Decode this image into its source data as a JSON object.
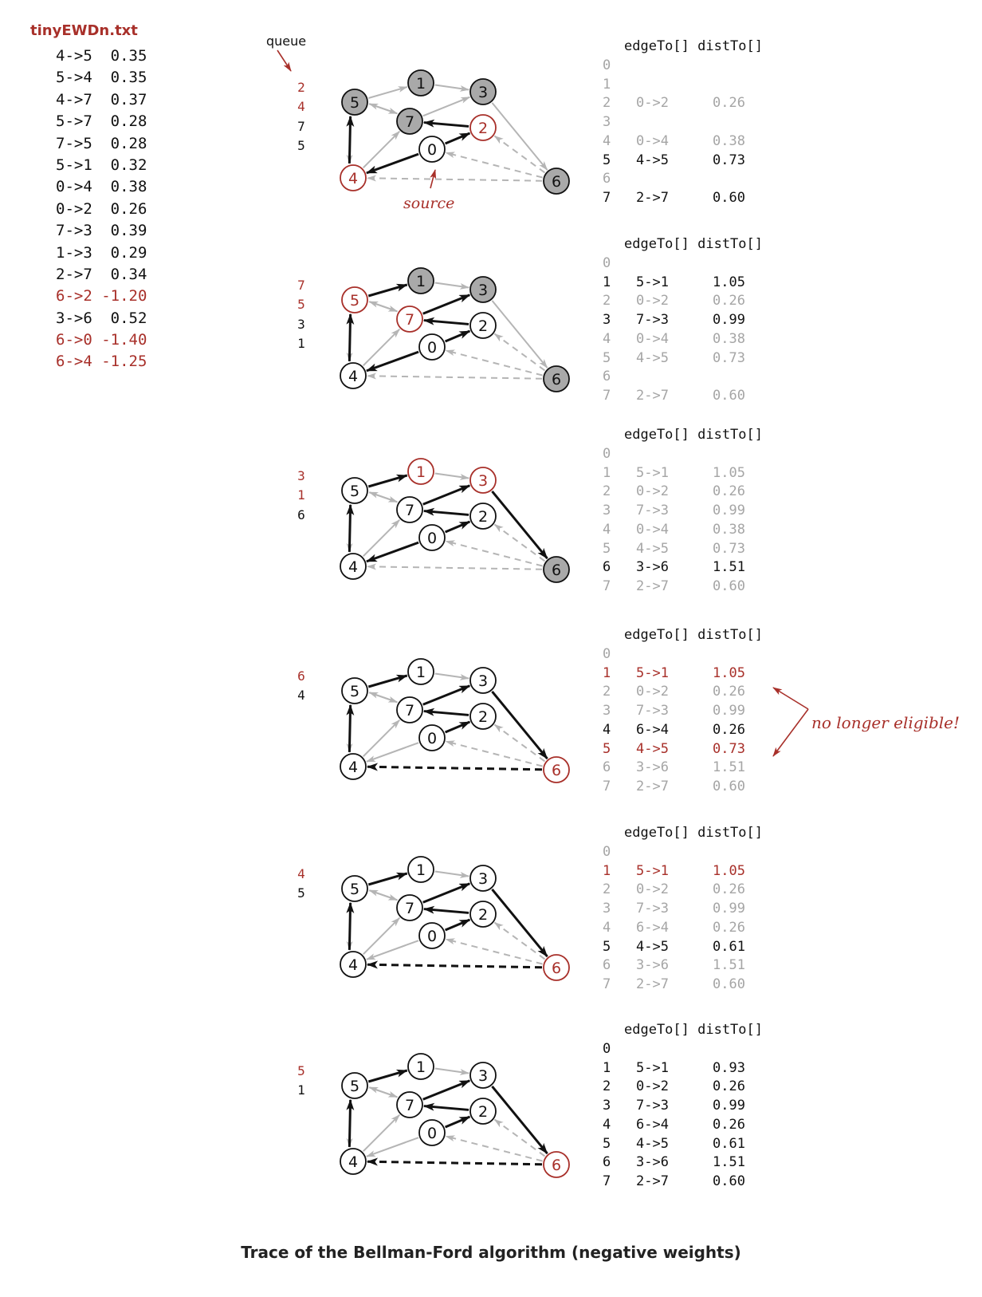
{
  "file_title": "tinyEWDn.txt",
  "edge_list": [
    {
      "text": "4->5  0.35",
      "highlight": false
    },
    {
      "text": "5->4  0.35",
      "highlight": false
    },
    {
      "text": "4->7  0.37",
      "highlight": false
    },
    {
      "text": "5->7  0.28",
      "highlight": false
    },
    {
      "text": "7->5  0.28",
      "highlight": false
    },
    {
      "text": "5->1  0.32",
      "highlight": false
    },
    {
      "text": "0->4  0.38",
      "highlight": false
    },
    {
      "text": "0->2  0.26",
      "highlight": false
    },
    {
      "text": "7->3  0.39",
      "highlight": false
    },
    {
      "text": "1->3  0.29",
      "highlight": false
    },
    {
      "text": "2->7  0.34",
      "highlight": false
    },
    {
      "text": "6->2 -1.20",
      "highlight": true
    },
    {
      "text": "3->6  0.52",
      "highlight": false
    },
    {
      "text": "6->0 -1.40",
      "highlight": true
    },
    {
      "text": "6->4 -1.25",
      "highlight": true
    }
  ],
  "labels": {
    "queue": "queue",
    "source": "source",
    "table_header": "edgeTo[] distTo[]",
    "note": "no longer eligible!",
    "caption": "Trace of the Bellman-Ford algorithm (negative weights)"
  },
  "colors": {
    "red": "#a8302a",
    "gray": "#b5b5b5",
    "black": "#111111",
    "fill_gray": "#a9a9a9"
  },
  "steps": [
    {
      "queue": [
        {
          "v": "2",
          "red": true
        },
        {
          "v": "4",
          "red": true
        },
        {
          "v": "7",
          "red": false
        },
        {
          "v": "5",
          "red": false
        }
      ],
      "vertices": {
        "0": "white",
        "1": "gray",
        "2": "red",
        "3": "gray",
        "4": "red",
        "5": "gray",
        "6": "gray",
        "7": "gray"
      },
      "black_edges": [
        "0->4",
        "0->2",
        "4->5",
        "2->7"
      ],
      "dashed_black": [],
      "table": [
        {
          "v": "0",
          "edge": "",
          "dist": "",
          "style": "gray"
        },
        {
          "v": "1",
          "edge": "",
          "dist": "",
          "style": "gray"
        },
        {
          "v": "2",
          "edge": "0->2",
          "dist": "0.26",
          "style": "gray"
        },
        {
          "v": "3",
          "edge": "",
          "dist": "",
          "style": "gray"
        },
        {
          "v": "4",
          "edge": "0->4",
          "dist": "0.38",
          "style": "gray"
        },
        {
          "v": "5",
          "edge": "4->5",
          "dist": "0.73",
          "style": "black"
        },
        {
          "v": "6",
          "edge": "",
          "dist": "",
          "style": "gray"
        },
        {
          "v": "7",
          "edge": "2->7",
          "dist": "0.60",
          "style": "black"
        }
      ]
    },
    {
      "queue": [
        {
          "v": "7",
          "red": true
        },
        {
          "v": "5",
          "red": true
        },
        {
          "v": "3",
          "red": false
        },
        {
          "v": "1",
          "red": false
        }
      ],
      "vertices": {
        "0": "white",
        "1": "gray",
        "2": "white",
        "3": "gray",
        "4": "white",
        "5": "red",
        "6": "gray",
        "7": "red"
      },
      "black_edges": [
        "0->4",
        "0->2",
        "4->5",
        "2->7",
        "5->1",
        "7->3"
      ],
      "dashed_black": [],
      "table": [
        {
          "v": "0",
          "edge": "",
          "dist": "",
          "style": "gray"
        },
        {
          "v": "1",
          "edge": "5->1",
          "dist": "1.05",
          "style": "black"
        },
        {
          "v": "2",
          "edge": "0->2",
          "dist": "0.26",
          "style": "gray"
        },
        {
          "v": "3",
          "edge": "7->3",
          "dist": "0.99",
          "style": "black"
        },
        {
          "v": "4",
          "edge": "0->4",
          "dist": "0.38",
          "style": "gray"
        },
        {
          "v": "5",
          "edge": "4->5",
          "dist": "0.73",
          "style": "gray"
        },
        {
          "v": "6",
          "edge": "",
          "dist": "",
          "style": "gray"
        },
        {
          "v": "7",
          "edge": "2->7",
          "dist": "0.60",
          "style": "gray"
        }
      ]
    },
    {
      "queue": [
        {
          "v": "3",
          "red": true
        },
        {
          "v": "1",
          "red": true
        },
        {
          "v": "6",
          "red": false
        }
      ],
      "vertices": {
        "0": "white",
        "1": "red",
        "2": "white",
        "3": "red",
        "4": "white",
        "5": "white",
        "6": "gray",
        "7": "white"
      },
      "black_edges": [
        "0->4",
        "0->2",
        "4->5",
        "2->7",
        "5->1",
        "7->3",
        "3->6"
      ],
      "dashed_black": [],
      "table": [
        {
          "v": "0",
          "edge": "",
          "dist": "",
          "style": "gray"
        },
        {
          "v": "1",
          "edge": "5->1",
          "dist": "1.05",
          "style": "gray"
        },
        {
          "v": "2",
          "edge": "0->2",
          "dist": "0.26",
          "style": "gray"
        },
        {
          "v": "3",
          "edge": "7->3",
          "dist": "0.99",
          "style": "gray"
        },
        {
          "v": "4",
          "edge": "0->4",
          "dist": "0.38",
          "style": "gray"
        },
        {
          "v": "5",
          "edge": "4->5",
          "dist": "0.73",
          "style": "gray"
        },
        {
          "v": "6",
          "edge": "3->6",
          "dist": "1.51",
          "style": "black"
        },
        {
          "v": "7",
          "edge": "2->7",
          "dist": "0.60",
          "style": "gray"
        }
      ]
    },
    {
      "queue": [
        {
          "v": "6",
          "red": true
        },
        {
          "v": "4",
          "red": false
        }
      ],
      "vertices": {
        "0": "white",
        "1": "white",
        "2": "white",
        "3": "white",
        "4": "white",
        "5": "white",
        "6": "red",
        "7": "white"
      },
      "black_edges": [
        "0->2",
        "4->5",
        "2->7",
        "5->1",
        "7->3",
        "3->6"
      ],
      "dashed_black": [
        "6->4"
      ],
      "table": [
        {
          "v": "0",
          "edge": "",
          "dist": "",
          "style": "gray"
        },
        {
          "v": "1",
          "edge": "5->1",
          "dist": "1.05",
          "style": "red"
        },
        {
          "v": "2",
          "edge": "0->2",
          "dist": "0.26",
          "style": "gray"
        },
        {
          "v": "3",
          "edge": "7->3",
          "dist": "0.99",
          "style": "gray"
        },
        {
          "v": "4",
          "edge": "6->4",
          "dist": "0.26",
          "style": "black"
        },
        {
          "v": "5",
          "edge": "4->5",
          "dist": "0.73",
          "style": "red"
        },
        {
          "v": "6",
          "edge": "3->6",
          "dist": "1.51",
          "style": "gray"
        },
        {
          "v": "7",
          "edge": "2->7",
          "dist": "0.60",
          "style": "gray"
        }
      ]
    },
    {
      "queue": [
        {
          "v": "4",
          "red": true
        },
        {
          "v": "5",
          "red": false
        }
      ],
      "vertices": {
        "0": "white",
        "1": "white",
        "2": "white",
        "3": "white",
        "4": "white",
        "5": "white",
        "6": "red",
        "7": "white"
      },
      "black_edges": [
        "0->2",
        "4->5",
        "2->7",
        "5->1",
        "7->3",
        "3->6"
      ],
      "dashed_black": [
        "6->4"
      ],
      "table": [
        {
          "v": "0",
          "edge": "",
          "dist": "",
          "style": "gray"
        },
        {
          "v": "1",
          "edge": "5->1",
          "dist": "1.05",
          "style": "red"
        },
        {
          "v": "2",
          "edge": "0->2",
          "dist": "0.26",
          "style": "gray"
        },
        {
          "v": "3",
          "edge": "7->3",
          "dist": "0.99",
          "style": "gray"
        },
        {
          "v": "4",
          "edge": "6->4",
          "dist": "0.26",
          "style": "gray"
        },
        {
          "v": "5",
          "edge": "4->5",
          "dist": "0.61",
          "style": "black"
        },
        {
          "v": "6",
          "edge": "3->6",
          "dist": "1.51",
          "style": "gray"
        },
        {
          "v": "7",
          "edge": "2->7",
          "dist": "0.60",
          "style": "gray"
        }
      ]
    },
    {
      "queue": [
        {
          "v": "5",
          "red": true
        },
        {
          "v": "1",
          "red": false
        }
      ],
      "vertices": {
        "0": "white",
        "1": "white",
        "2": "white",
        "3": "white",
        "4": "white",
        "5": "white",
        "6": "red",
        "7": "white"
      },
      "black_edges": [
        "0->2",
        "4->5",
        "2->7",
        "5->1",
        "7->3",
        "3->6"
      ],
      "dashed_black": [
        "6->4"
      ],
      "table": [
        {
          "v": "0",
          "edge": "",
          "dist": "",
          "style": "black"
        },
        {
          "v": "1",
          "edge": "5->1",
          "dist": "0.93",
          "style": "black"
        },
        {
          "v": "2",
          "edge": "0->2",
          "dist": "0.26",
          "style": "black"
        },
        {
          "v": "3",
          "edge": "7->3",
          "dist": "0.99",
          "style": "black"
        },
        {
          "v": "4",
          "edge": "6->4",
          "dist": "0.26",
          "style": "black"
        },
        {
          "v": "5",
          "edge": "4->5",
          "dist": "0.61",
          "style": "black"
        },
        {
          "v": "6",
          "edge": "3->6",
          "dist": "1.51",
          "style": "black"
        },
        {
          "v": "7",
          "edge": "2->7",
          "dist": "0.60",
          "style": "black"
        }
      ]
    }
  ]
}
